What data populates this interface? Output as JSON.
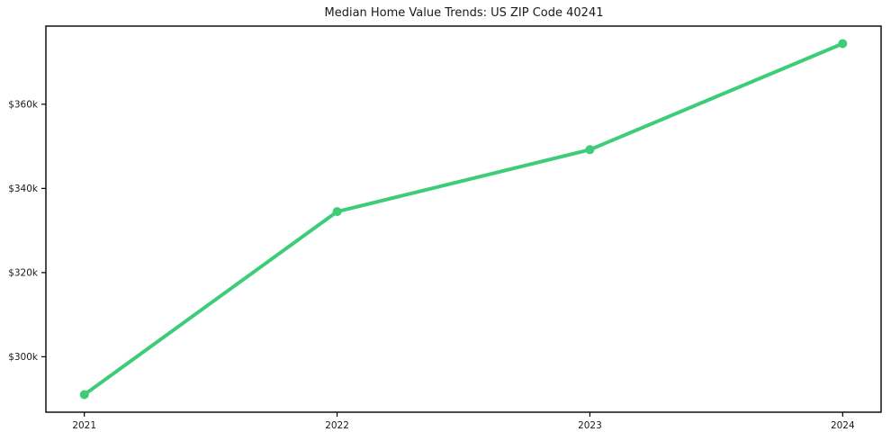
{
  "chart_data": {
    "type": "line",
    "title": "Median Home Value Trends: US ZIP Code 40241",
    "xlabel": "",
    "ylabel": "",
    "categories": [
      "2021",
      "2022",
      "2023",
      "2024"
    ],
    "series": [
      {
        "name": "Median Home Value",
        "values": [
          291000,
          334500,
          349200,
          374400
        ]
      }
    ],
    "yticks": [
      {
        "value": 300000,
        "label": "$300k"
      },
      {
        "value": 320000,
        "label": "$320k"
      },
      {
        "value": 340000,
        "label": "$340k"
      },
      {
        "value": 360000,
        "label": "$360k"
      }
    ],
    "ylim": [
      286830,
      378570
    ],
    "grid": false,
    "legend": "none",
    "line_color": "#3dcd78",
    "marker_color": "#3dcd78",
    "axis_color": "#000000",
    "text_color": "#1a1a1a",
    "background": "#ffffff"
  }
}
